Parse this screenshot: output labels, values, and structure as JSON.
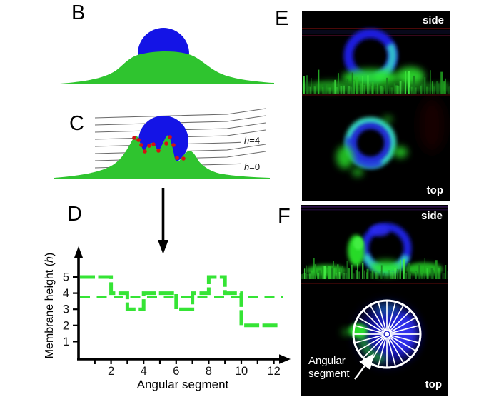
{
  "panels": {
    "B": {
      "label": "B"
    },
    "C": {
      "label": "C",
      "contour_high": {
        "var": "h",
        "rest": "=4"
      },
      "contour_low": {
        "var": "h",
        "rest": "=0"
      },
      "red_dots": [
        [
          188,
          193
        ],
        [
          194,
          196
        ],
        [
          198,
          203
        ],
        [
          203,
          212
        ],
        [
          209,
          204
        ],
        [
          215,
          202
        ],
        [
          222,
          211
        ],
        [
          233,
          201
        ],
        [
          238,
          192
        ],
        [
          243,
          203
        ],
        [
          248,
          221
        ],
        [
          257,
          222
        ]
      ]
    },
    "D": {
      "label": "D"
    },
    "E": {
      "label": "E",
      "side_label": "side",
      "top_label": "top"
    },
    "F": {
      "label": "F",
      "side_label": "side",
      "top_label": "top",
      "annotation_line1": "Angular",
      "annotation_line2": "segment",
      "wheel": {
        "segments": 24
      }
    }
  },
  "chart_data": {
    "type": "step-line",
    "categories": [
      1,
      2,
      3,
      4,
      5,
      6,
      7,
      8,
      9,
      10,
      11,
      12
    ],
    "values": [
      5,
      5,
      4,
      3,
      4,
      4,
      3,
      4,
      5,
      4,
      2,
      2
    ],
    "mean": 3.75,
    "xlabel": "Angular segment",
    "ylabel_pre": "Membrane height (",
    "ylabel_var": "h",
    "ylabel_post": ")",
    "xticks": [
      1,
      2,
      3,
      4,
      5,
      6,
      7,
      8,
      9,
      10,
      11,
      12
    ],
    "xtick_labels": [
      2,
      4,
      6,
      8,
      10,
      12
    ],
    "yticks": [
      1,
      2,
      3,
      4,
      5
    ],
    "xlim": [
      0,
      13
    ],
    "ylim": [
      0,
      6.5
    ],
    "grid": false,
    "legend": false,
    "line_color": "#35e435",
    "mean_line_style": "dashed"
  },
  "colors": {
    "dome_blue": "#1414e6",
    "membrane_green": "#2fc42f",
    "dot_red": "#d31313",
    "contour_gray": "#5a5a5a",
    "axis_black": "#000000",
    "micro_bg": "#000000",
    "micro_blue": "#1b1bdf",
    "micro_cyan": "#35dcc8",
    "micro_green": "#2ce62c",
    "scanline_red": "#4c0909",
    "scanline_purple": "#231040",
    "wheel_white": "#ffffff"
  }
}
